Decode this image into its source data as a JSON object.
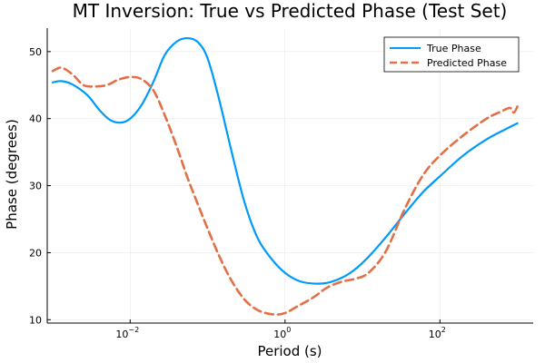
{
  "chart_data": {
    "type": "line",
    "title": "MT Inversion: True vs Predicted Phase (Test Set)",
    "xlabel": "Period (s)",
    "ylabel": "Phase (degrees)",
    "x_scale": "log",
    "xlim": [
      0.00085,
      1600
    ],
    "ylim": [
      9.5,
      53.5
    ],
    "grid": true,
    "legend_position": "top-right",
    "x_ticks": [
      {
        "value": 0.01,
        "base": "10",
        "exp": "−2"
      },
      {
        "value": 1,
        "base": "10",
        "exp": "0"
      },
      {
        "value": 100,
        "base": "10",
        "exp": "2"
      }
    ],
    "y_ticks": [
      10,
      20,
      30,
      40,
      50
    ],
    "series": [
      {
        "name": "True Phase",
        "color": "#009af9",
        "style": "solid",
        "x": [
          0.001,
          0.0013,
          0.0018,
          0.0028,
          0.004,
          0.0055,
          0.0075,
          0.01,
          0.014,
          0.02,
          0.028,
          0.04,
          0.055,
          0.075,
          0.1,
          0.14,
          0.2,
          0.3,
          0.45,
          0.7,
          1.0,
          1.5,
          2.3,
          3.5,
          5.5,
          8,
          12,
          20,
          35,
          60,
          100,
          200,
          400,
          700,
          1000
        ],
        "y": [
          45.4,
          45.6,
          45.1,
          43.5,
          41.3,
          39.8,
          39.4,
          40.0,
          42.0,
          45.5,
          49.5,
          51.5,
          52.0,
          51.4,
          49.0,
          43.0,
          35.5,
          27.5,
          22.0,
          18.8,
          17.0,
          15.8,
          15.4,
          15.5,
          16.3,
          17.5,
          19.4,
          22.3,
          25.8,
          29.0,
          31.4,
          34.5,
          36.9,
          38.4,
          39.3
        ]
      },
      {
        "name": "Predicted Phase",
        "color": "#e26f46",
        "style": "dashed",
        "x": [
          0.001,
          0.0013,
          0.0018,
          0.0025,
          0.0035,
          0.005,
          0.007,
          0.01,
          0.014,
          0.02,
          0.028,
          0.04,
          0.055,
          0.075,
          0.1,
          0.14,
          0.2,
          0.3,
          0.45,
          0.7,
          1.0,
          1.5,
          2.3,
          3.5,
          5.5,
          8,
          12,
          20,
          35,
          60,
          100,
          200,
          400,
          600,
          800,
          900,
          1000
        ],
        "y": [
          47.1,
          47.6,
          46.6,
          45.0,
          44.8,
          45.0,
          45.8,
          46.2,
          45.9,
          44.2,
          40.5,
          35.8,
          31.2,
          27.2,
          23.6,
          19.6,
          16.0,
          13.0,
          11.4,
          10.8,
          11.0,
          12.1,
          13.3,
          14.8,
          15.7,
          16.1,
          17.0,
          20.2,
          26.5,
          31.5,
          34.5,
          37.5,
          40.0,
          41.0,
          41.6,
          40.9,
          41.8
        ]
      }
    ]
  }
}
